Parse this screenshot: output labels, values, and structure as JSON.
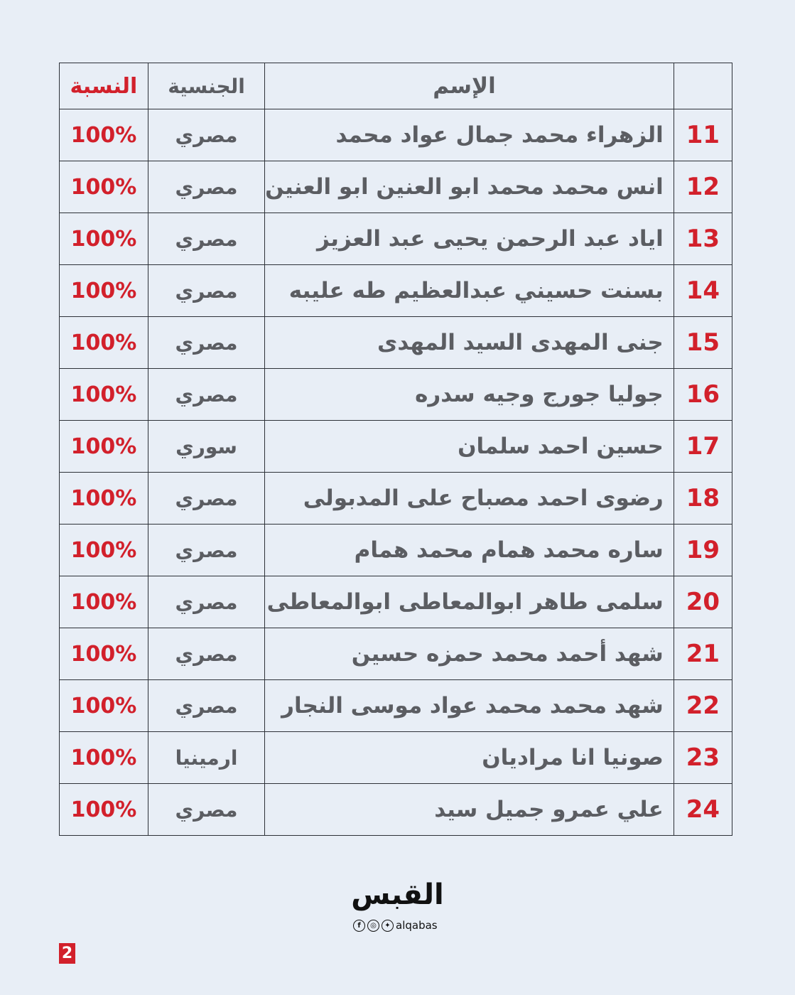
{
  "header": {
    "percent": "النسبة",
    "nationality": "الجنسية",
    "name": "الإسم",
    "number": ""
  },
  "rows": [
    {
      "num": "11",
      "name": "الزهراء محمد جمال عواد محمد",
      "nationality": "مصري",
      "percent": "100%"
    },
    {
      "num": "12",
      "name": "انس محمد محمد ابو العنين ابو العنين",
      "nationality": "مصري",
      "percent": "100%"
    },
    {
      "num": "13",
      "name": "اياد عبد الرحمن يحيى عبد العزيز",
      "nationality": "مصري",
      "percent": "100%"
    },
    {
      "num": "14",
      "name": "بسنت حسيني عبدالعظيم طه عليبه",
      "nationality": "مصري",
      "percent": "100%"
    },
    {
      "num": "15",
      "name": "جنى المهدى السيد المهدى",
      "nationality": "مصري",
      "percent": "100%"
    },
    {
      "num": "16",
      "name": "جوليا جورج وجيه سدره",
      "nationality": "مصري",
      "percent": "100%"
    },
    {
      "num": "17",
      "name": "حسين احمد سلمان",
      "nationality": "سوري",
      "percent": "100%"
    },
    {
      "num": "18",
      "name": "رضوى احمد مصباح على المدبولى",
      "nationality": "مصري",
      "percent": "100%"
    },
    {
      "num": "19",
      "name": "ساره محمد همام محمد همام",
      "nationality": "مصري",
      "percent": "100%"
    },
    {
      "num": "20",
      "name": "سلمى طاهر ابوالمعاطى ابوالمعاطى",
      "nationality": "مصري",
      "percent": "100%"
    },
    {
      "num": "21",
      "name": "شهد أحمد محمد حمزه حسين",
      "nationality": "مصري",
      "percent": "100%"
    },
    {
      "num": "22",
      "name": "شهد محمد محمد عواد موسى النجار",
      "nationality": "مصري",
      "percent": "100%"
    },
    {
      "num": "23",
      "name": "صونيا انا مراديان",
      "nationality": "ارمينيا",
      "percent": "100%"
    },
    {
      "num": "24",
      "name": "علي عمرو جميل سيد",
      "nationality": "مصري",
      "percent": "100%"
    }
  ],
  "footer": {
    "logo": "القبس",
    "handle": "alqabas",
    "page_number": "2",
    "social_icons": [
      "facebook-icon",
      "instagram-icon",
      "twitter-icon"
    ]
  },
  "colors": {
    "accent": "#d2202b",
    "text": "#5b5d62",
    "background": "#e8eef6"
  }
}
